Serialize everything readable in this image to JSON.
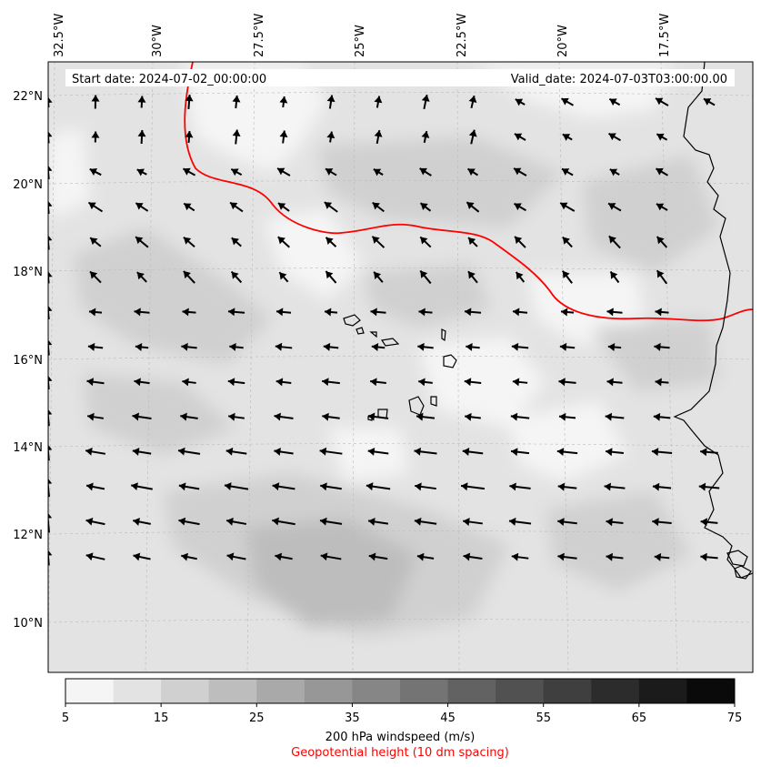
{
  "header": {
    "start_date": "Start date: 2024-07-02_00:00:00",
    "valid_date": "Valid_date: 2024-07-03T03:00:00.00"
  },
  "axes": {
    "lon_labels": [
      "32.5°W",
      "30°W",
      "27.5°W",
      "25°W",
      "22.5°W",
      "20°W",
      "17.5°W"
    ],
    "lat_labels": [
      "22°N",
      "20°N",
      "18°N",
      "16°N",
      "14°N",
      "12°N",
      "10°N"
    ]
  },
  "colorbar": {
    "ticks": [
      "5",
      "15",
      "25",
      "35",
      "45",
      "55",
      "65",
      "75"
    ],
    "label": "200 hPa windspeed (m/s)",
    "sublabel": "Geopotential height (10 dm spacing)",
    "colors": [
      "#f5f5f5",
      "#e3e3e3",
      "#d0d0d0",
      "#bdbdbd",
      "#a9a9a9",
      "#979797",
      "#868686",
      "#747474",
      "#626262",
      "#515151",
      "#3f3f3f",
      "#2c2c2c",
      "#1b1b1b",
      "#0a0a0a"
    ]
  },
  "colors": {
    "contour": "#ff0000",
    "coastline": "#000000",
    "arrow": "#000000"
  }
}
